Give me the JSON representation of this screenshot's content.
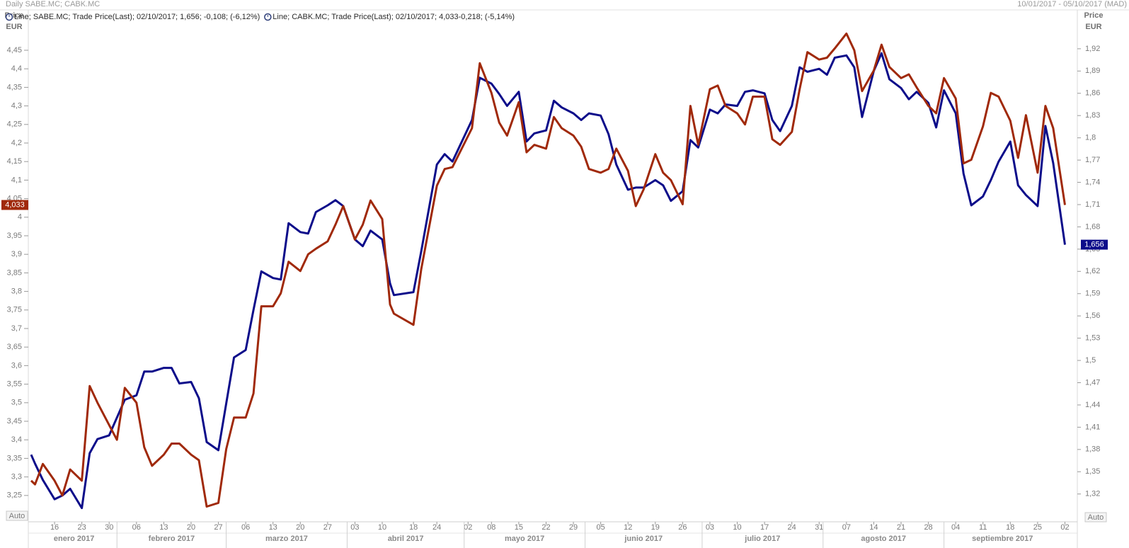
{
  "chart_data": {
    "type": "line",
    "title": "Daily SABE.MC; CABK.MC",
    "subtitle": "10/01/2017 - 05/10/2017 (MAD)",
    "y_label": "Price",
    "y_unit": "EUR",
    "y2_label": "Price",
    "y2_unit": "EUR",
    "auto_labels": [
      "Auto",
      "Auto"
    ],
    "x": [
      "2017-01-10",
      "2017-01-11",
      "2017-01-13",
      "2017-01-16",
      "2017-01-18",
      "2017-01-20",
      "2017-01-23",
      "2017-01-25",
      "2017-01-27",
      "2017-01-30",
      "2017-02-01",
      "2017-02-03",
      "2017-02-06",
      "2017-02-08",
      "2017-02-10",
      "2017-02-13",
      "2017-02-15",
      "2017-02-17",
      "2017-02-20",
      "2017-02-22",
      "2017-02-24",
      "2017-02-27",
      "2017-03-01",
      "2017-03-03",
      "2017-03-06",
      "2017-03-08",
      "2017-03-10",
      "2017-03-13",
      "2017-03-15",
      "2017-03-17",
      "2017-03-20",
      "2017-03-22",
      "2017-03-24",
      "2017-03-27",
      "2017-03-29",
      "2017-03-31",
      "2017-04-03",
      "2017-04-05",
      "2017-04-07",
      "2017-04-10",
      "2017-04-12",
      "2017-04-13",
      "2017-04-18",
      "2017-04-20",
      "2017-04-24",
      "2017-04-26",
      "2017-04-28",
      "2017-05-03",
      "2017-05-05",
      "2017-05-08",
      "2017-05-10",
      "2017-05-12",
      "2017-05-15",
      "2017-05-17",
      "2017-05-19",
      "2017-05-22",
      "2017-05-24",
      "2017-05-26",
      "2017-05-29",
      "2017-05-31",
      "2017-06-02",
      "2017-06-05",
      "2017-06-07",
      "2017-06-09",
      "2017-06-12",
      "2017-06-14",
      "2017-06-16",
      "2017-06-19",
      "2017-06-21",
      "2017-06-23",
      "2017-06-26",
      "2017-06-28",
      "2017-06-30",
      "2017-07-03",
      "2017-07-05",
      "2017-07-07",
      "2017-07-10",
      "2017-07-12",
      "2017-07-14",
      "2017-07-17",
      "2017-07-19",
      "2017-07-21",
      "2017-07-24",
      "2017-07-26",
      "2017-07-28",
      "2017-07-31",
      "2017-08-02",
      "2017-08-04",
      "2017-08-07",
      "2017-08-09",
      "2017-08-11",
      "2017-08-14",
      "2017-08-16",
      "2017-08-18",
      "2017-08-21",
      "2017-08-23",
      "2017-08-25",
      "2017-08-28",
      "2017-08-30",
      "2017-09-01",
      "2017-09-04",
      "2017-09-06",
      "2017-09-08",
      "2017-09-11",
      "2017-09-13",
      "2017-09-15",
      "2017-09-18",
      "2017-09-20",
      "2017-09-22",
      "2017-09-25",
      "2017-09-27",
      "2017-09-29",
      "2017-10-02"
    ],
    "xlim": [
      "2017-01-10",
      "2017-10-05"
    ],
    "xticks": [
      {
        "value": "2017-01-16",
        "label": "16"
      },
      {
        "value": "2017-01-23",
        "label": "23"
      },
      {
        "value": "2017-01-30",
        "label": "30"
      },
      {
        "value": "2017-02-06",
        "label": "06"
      },
      {
        "value": "2017-02-13",
        "label": "13"
      },
      {
        "value": "2017-02-20",
        "label": "20"
      },
      {
        "value": "2017-02-27",
        "label": "27"
      },
      {
        "value": "2017-03-06",
        "label": "06"
      },
      {
        "value": "2017-03-13",
        "label": "13"
      },
      {
        "value": "2017-03-20",
        "label": "20"
      },
      {
        "value": "2017-03-27",
        "label": "27"
      },
      {
        "value": "2017-04-03",
        "label": "03"
      },
      {
        "value": "2017-04-10",
        "label": "10"
      },
      {
        "value": "2017-04-18",
        "label": "18"
      },
      {
        "value": "2017-04-24",
        "label": "24"
      },
      {
        "value": "2017-05-02",
        "label": "02"
      },
      {
        "value": "2017-05-08",
        "label": "08"
      },
      {
        "value": "2017-05-15",
        "label": "15"
      },
      {
        "value": "2017-05-22",
        "label": "22"
      },
      {
        "value": "2017-05-29",
        "label": "29"
      },
      {
        "value": "2017-06-05",
        "label": "05"
      },
      {
        "value": "2017-06-12",
        "label": "12"
      },
      {
        "value": "2017-06-19",
        "label": "19"
      },
      {
        "value": "2017-06-26",
        "label": "26"
      },
      {
        "value": "2017-07-03",
        "label": "03"
      },
      {
        "value": "2017-07-10",
        "label": "10"
      },
      {
        "value": "2017-07-17",
        "label": "17"
      },
      {
        "value": "2017-07-24",
        "label": "24"
      },
      {
        "value": "2017-07-31",
        "label": "31"
      },
      {
        "value": "2017-08-07",
        "label": "07"
      },
      {
        "value": "2017-08-14",
        "label": "14"
      },
      {
        "value": "2017-08-21",
        "label": "21"
      },
      {
        "value": "2017-08-28",
        "label": "28"
      },
      {
        "value": "2017-09-04",
        "label": "04"
      },
      {
        "value": "2017-09-11",
        "label": "11"
      },
      {
        "value": "2017-09-18",
        "label": "18"
      },
      {
        "value": "2017-09-25",
        "label": "25"
      },
      {
        "value": "2017-10-02",
        "label": "02"
      }
    ],
    "months": [
      {
        "value": "2017-01",
        "label": "enero 2017"
      },
      {
        "value": "2017-02",
        "label": "febrero 2017"
      },
      {
        "value": "2017-03",
        "label": "marzo 2017"
      },
      {
        "value": "2017-04",
        "label": "abril 2017"
      },
      {
        "value": "2017-05",
        "label": "mayo 2017"
      },
      {
        "value": "2017-06",
        "label": "junio 2017"
      },
      {
        "value": "2017-07",
        "label": "julio 2017"
      },
      {
        "value": "2017-08",
        "label": "agosto 2017"
      },
      {
        "value": "2017-09",
        "label": "septiembre 2017"
      }
    ],
    "ylim": [
      3.18,
      4.52
    ],
    "yticks": [
      {
        "value": 4.45,
        "label": "4,45"
      },
      {
        "value": 4.4,
        "label": "4,4"
      },
      {
        "value": 4.35,
        "label": "4,35"
      },
      {
        "value": 4.3,
        "label": "4,3"
      },
      {
        "value": 4.25,
        "label": "4,25"
      },
      {
        "value": 4.2,
        "label": "4,2"
      },
      {
        "value": 4.15,
        "label": "4,15"
      },
      {
        "value": 4.1,
        "label": "4,1"
      },
      {
        "value": 4.05,
        "label": "4,05"
      },
      4,
      {
        "value": 3.95,
        "label": "3,95"
      },
      {
        "value": 3.9,
        "label": "3,9"
      },
      {
        "value": 3.85,
        "label": "3,85"
      },
      {
        "value": 3.8,
        "label": "3,8"
      },
      {
        "value": 3.75,
        "label": "3,75"
      },
      {
        "value": 3.7,
        "label": "3,7"
      },
      {
        "value": 3.65,
        "label": "3,65"
      },
      {
        "value": 3.6,
        "label": "3,6"
      },
      {
        "value": 3.55,
        "label": "3,55"
      },
      {
        "value": 3.5,
        "label": "3,5"
      },
      {
        "value": 3.45,
        "label": "3,45"
      },
      {
        "value": 3.4,
        "label": "3,4"
      },
      {
        "value": 3.35,
        "label": "3,35"
      },
      {
        "value": 3.3,
        "label": "3,3"
      },
      {
        "value": 3.25,
        "label": "3,25"
      }
    ],
    "y2lim": [
      1.283,
      1.953
    ],
    "y2ticks": [
      {
        "value": 1.92,
        "label": "1,92"
      },
      {
        "value": 1.89,
        "label": "1,89"
      },
      {
        "value": 1.86,
        "label": "1,86"
      },
      {
        "value": 1.83,
        "label": "1,83"
      },
      {
        "value": 1.8,
        "label": "1,8"
      },
      {
        "value": 1.77,
        "label": "1,77"
      },
      {
        "value": 1.74,
        "label": "1,74"
      },
      {
        "value": 1.71,
        "label": "1,71"
      },
      {
        "value": 1.68,
        "label": "1,68"
      },
      {
        "value": 1.65,
        "label": "1,65"
      },
      {
        "value": 1.62,
        "label": "1,62"
      },
      {
        "value": 1.59,
        "label": "1,59"
      },
      {
        "value": 1.56,
        "label": "1,56"
      },
      {
        "value": 1.53,
        "label": "1,53"
      },
      {
        "value": 1.5,
        "label": "1,5"
      },
      {
        "value": 1.47,
        "label": "1,47"
      },
      {
        "value": 1.44,
        "label": "1,44"
      },
      {
        "value": 1.41,
        "label": "1,41"
      },
      {
        "value": 1.38,
        "label": "1,38"
      },
      {
        "value": 1.35,
        "label": "1,35"
      },
      {
        "value": 1.32,
        "label": "1,32"
      }
    ],
    "grid": false,
    "series": [
      {
        "name": "Line; SABE.MC; Trade Price(Last); 02/10/2017; 1,656; -0,108; (-6,12%)",
        "color": "#0c0c8a",
        "axis": "y2",
        "last_value_label": "1,656",
        "values": [
          1.373,
          1.361,
          1.339,
          1.313,
          1.318,
          1.327,
          1.301,
          1.375,
          1.394,
          1.399,
          1.423,
          1.447,
          1.453,
          1.485,
          1.485,
          1.49,
          1.49,
          1.469,
          1.471,
          1.449,
          1.39,
          1.379,
          1.442,
          1.504,
          1.514,
          1.568,
          1.62,
          1.611,
          1.609,
          1.685,
          1.673,
          1.671,
          1.7,
          1.709,
          1.716,
          1.708,
          1.663,
          1.654,
          1.675,
          1.663,
          1.604,
          1.588,
          1.592,
          1.647,
          1.764,
          1.778,
          1.768,
          1.824,
          1.881,
          1.873,
          1.859,
          1.843,
          1.862,
          1.795,
          1.806,
          1.81,
          1.85,
          1.841,
          1.833,
          1.824,
          1.833,
          1.83,
          1.805,
          1.764,
          1.73,
          1.733,
          1.733,
          1.743,
          1.736,
          1.715,
          1.728,
          1.797,
          1.787,
          1.838,
          1.833,
          1.845,
          1.843,
          1.862,
          1.864,
          1.86,
          1.824,
          1.809,
          1.843,
          1.895,
          1.889,
          1.893,
          1.885,
          1.908,
          1.911,
          1.895,
          1.828,
          1.89,
          1.914,
          1.879,
          1.867,
          1.852,
          1.862,
          1.847,
          1.814,
          1.864,
          1.833,
          1.752,
          1.709,
          1.721,
          1.743,
          1.768,
          1.795,
          1.736,
          1.723,
          1.708,
          1.816,
          1.766,
          1.656
        ]
      },
      {
        "name": "Line; CABK.MC; Trade Price(Last); 02/10/2017; 4,033-0,218; (-5,14%)",
        "color": "#a0290a",
        "axis": "y",
        "last_value_label": "4,033",
        "values": [
          3.29,
          3.28,
          3.335,
          3.29,
          3.25,
          3.32,
          3.29,
          3.545,
          3.5,
          3.44,
          3.4,
          3.54,
          3.5,
          3.38,
          3.33,
          3.36,
          3.39,
          3.39,
          3.36,
          3.345,
          3.22,
          3.23,
          3.375,
          3.46,
          3.46,
          3.525,
          3.76,
          3.76,
          3.795,
          3.88,
          3.855,
          3.9,
          3.915,
          3.935,
          3.98,
          4.03,
          3.94,
          3.98,
          4.045,
          3.995,
          3.765,
          3.74,
          3.71,
          3.86,
          4.085,
          4.13,
          4.135,
          4.24,
          4.415,
          4.335,
          4.255,
          4.22,
          4.31,
          4.175,
          4.195,
          4.185,
          4.27,
          4.24,
          4.22,
          4.19,
          4.13,
          4.12,
          4.13,
          4.185,
          4.125,
          4.03,
          4.075,
          4.17,
          4.12,
          4.1,
          4.035,
          4.3,
          4.195,
          4.345,
          4.355,
          4.3,
          4.28,
          4.25,
          4.325,
          4.325,
          4.21,
          4.195,
          4.23,
          4.345,
          4.445,
          4.425,
          4.43,
          4.455,
          4.495,
          4.45,
          4.34,
          4.395,
          4.465,
          4.405,
          4.375,
          4.385,
          4.35,
          4.3,
          4.28,
          4.375,
          4.32,
          4.145,
          4.155,
          4.245,
          4.335,
          4.325,
          4.26,
          4.16,
          4.275,
          4.12,
          4.3,
          4.24,
          4.033
        ]
      }
    ]
  }
}
